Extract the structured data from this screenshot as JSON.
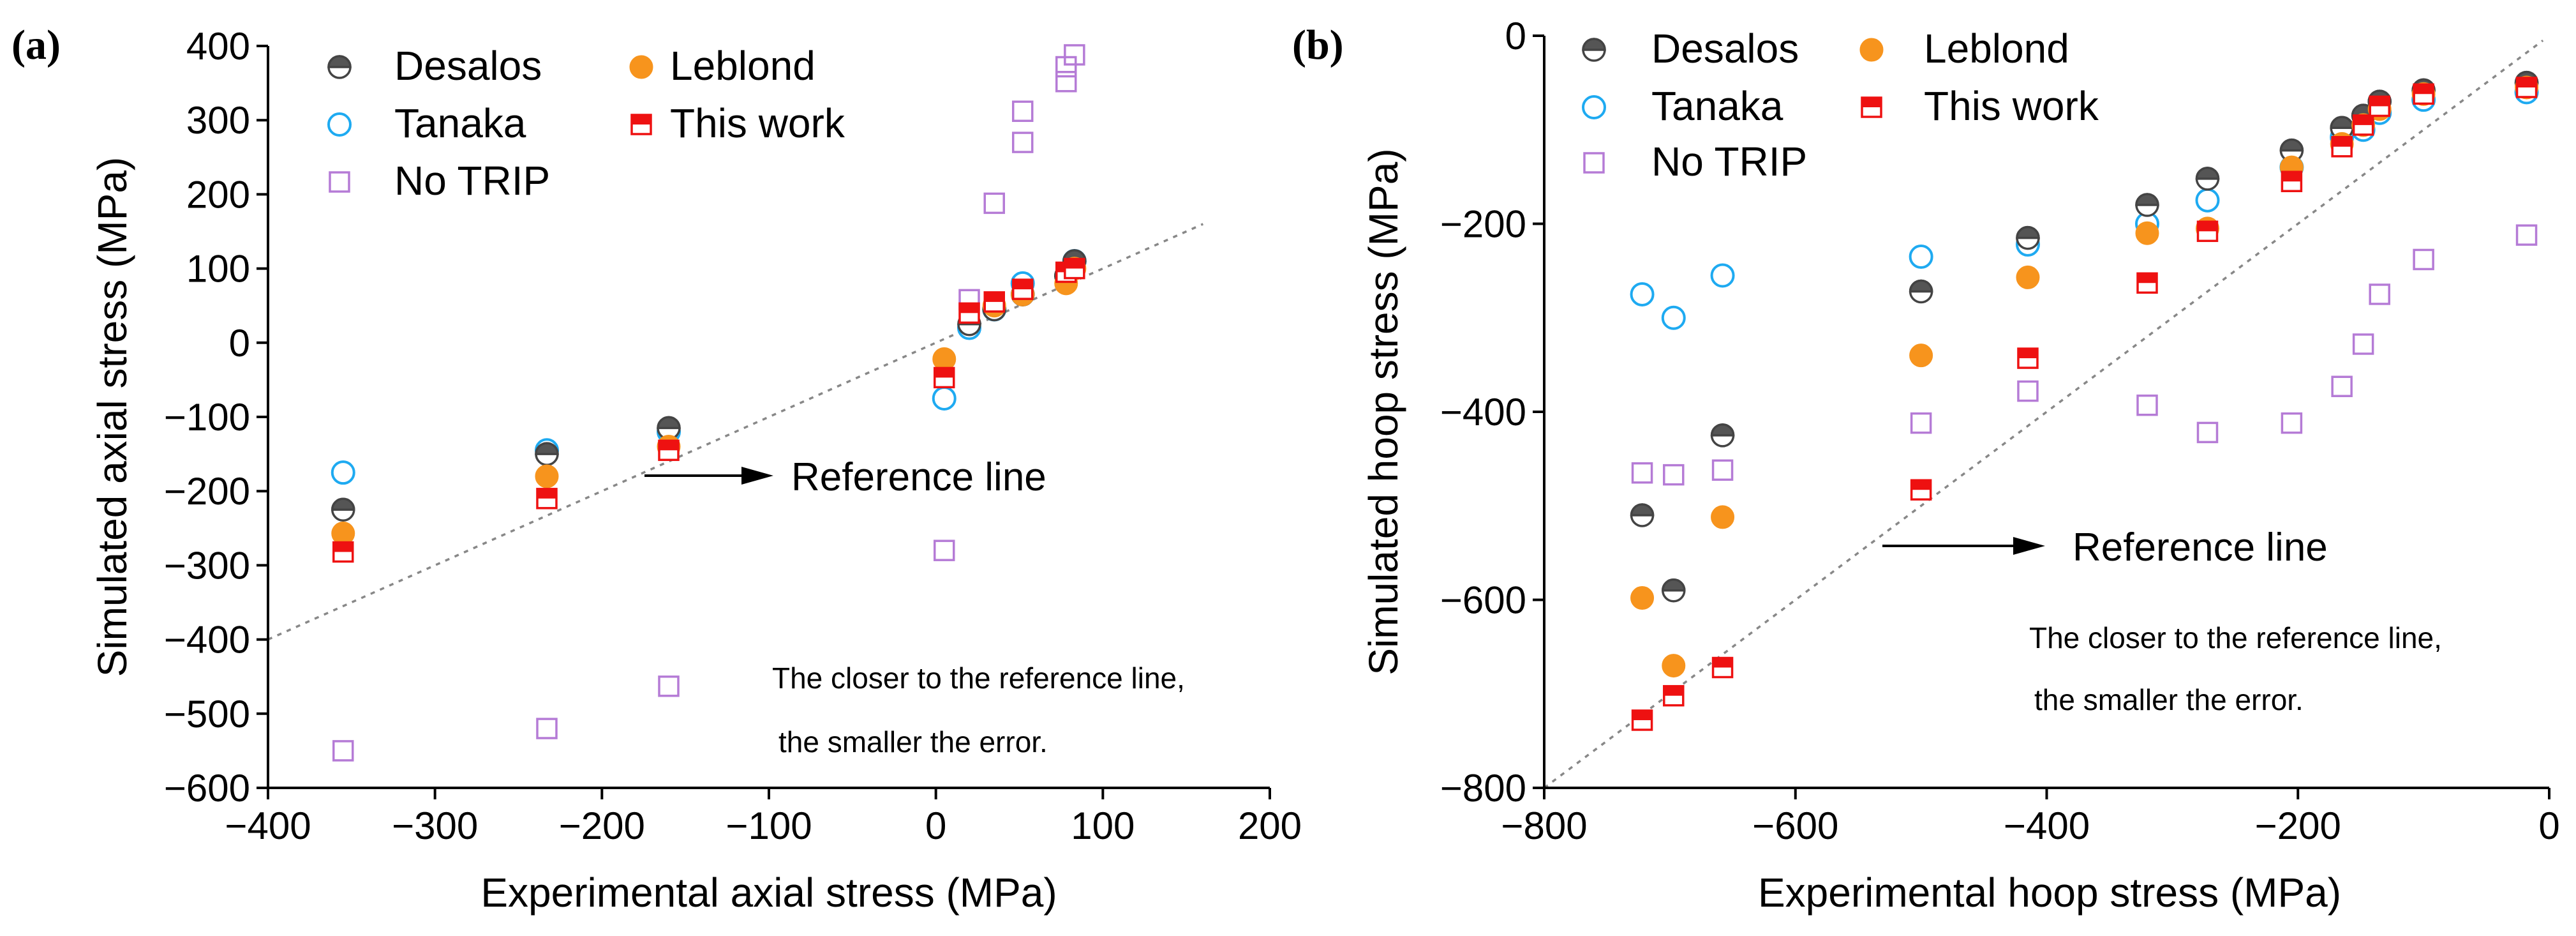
{
  "chart_data": [
    {
      "type": "scatter",
      "panel_label": "(a)",
      "xlabel": "Experimental axial stress (MPa)",
      "ylabel": "Simulated axial stress (MPa)",
      "xlim": [
        -400,
        200
      ],
      "ylim": [
        -600,
        400
      ],
      "xticks": [
        -400,
        -300,
        -200,
        -100,
        0,
        100,
        200
      ],
      "yticks": [
        -600,
        -500,
        -400,
        -300,
        -200,
        -100,
        0,
        100,
        200,
        300,
        400
      ],
      "xtick_labels": [
        "−400",
        "−300",
        "−200",
        "−100",
        "0",
        "100",
        "200"
      ],
      "ytick_labels": [
        "−600",
        "−500",
        "−400",
        "−300",
        "−200",
        "−100",
        "0",
        "100",
        "200",
        "300",
        "400"
      ],
      "reference_line": {
        "x": [
          -400,
          160
        ],
        "y": [
          -400,
          160
        ]
      },
      "annotations": {
        "reference_label": "Reference line",
        "note_line1": "The closer to the reference line,",
        "note_line2": "the smaller the error."
      },
      "legend_location": "top-left",
      "series": [
        {
          "name": "Desalos",
          "marker": "half-filled-circle",
          "color": "#555555",
          "x": [
            -355,
            -233,
            -160,
            20,
            35,
            52,
            78,
            83
          ],
          "y": [
            -225,
            -150,
            -115,
            25,
            45,
            65,
            90,
            110
          ]
        },
        {
          "name": "Leblond",
          "marker": "filled-circle",
          "color": "#f7941d",
          "x": [
            -355,
            -233,
            -160,
            5,
            35,
            52,
            78,
            83
          ],
          "y": [
            -257,
            -180,
            -140,
            -22,
            50,
            65,
            80,
            100
          ]
        },
        {
          "name": "Tanaka",
          "marker": "open-circle",
          "color": "#1eaaf1",
          "x": [
            -355,
            -233,
            -160,
            5,
            20,
            35,
            52,
            83
          ],
          "y": [
            -175,
            -145,
            -120,
            -75,
            20,
            45,
            80,
            110
          ]
        },
        {
          "name": "This work",
          "marker": "half-filled-square",
          "color": "#ee1111",
          "x": [
            -355,
            -233,
            -160,
            5,
            20,
            35,
            52,
            78,
            83
          ],
          "y": [
            -282,
            -210,
            -145,
            -47,
            40,
            55,
            72,
            95,
            100
          ]
        },
        {
          "name": "No TRIP",
          "marker": "open-square",
          "color": "#b57bd6",
          "x": [
            -355,
            -233,
            -160,
            5,
            20,
            35,
            52,
            52,
            78,
            78,
            83
          ],
          "y": [
            -550,
            -520,
            -463,
            -280,
            58,
            188,
            270,
            312,
            352,
            372,
            388
          ]
        }
      ]
    },
    {
      "type": "scatter",
      "panel_label": "(b)",
      "xlabel": "Experimental hoop stress (MPa)",
      "ylabel": "Simulated hoop stress (MPa)",
      "xlim": [
        -800,
        0
      ],
      "ylim": [
        -800,
        0
      ],
      "xticks": [
        -800,
        -600,
        -400,
        -200,
        0
      ],
      "yticks": [
        -800,
        -600,
        -400,
        -200,
        0
      ],
      "xtick_labels": [
        "−800",
        "−600",
        "−400",
        "−200",
        "0"
      ],
      "ytick_labels": [
        "−800",
        "−600",
        "−400",
        "−200",
        "0"
      ],
      "reference_line": {
        "x": [
          -800,
          -5
        ],
        "y": [
          -800,
          -5
        ]
      },
      "annotations": {
        "reference_label": "Reference line",
        "note_line1": "The closer to the reference line,",
        "note_line2": "the smaller the error."
      },
      "legend_location": "top-left",
      "series": [
        {
          "name": "Desalos",
          "marker": "half-filled-circle",
          "color": "#555555",
          "x": [
            -722,
            -697,
            -658,
            -500,
            -415,
            -320,
            -272,
            -205,
            -165,
            -148,
            -135,
            -100,
            -18
          ],
          "y": [
            -510,
            -590,
            -425,
            -272,
            -215,
            -180,
            -152,
            -122,
            -98,
            -85,
            -70,
            -58,
            -50
          ]
        },
        {
          "name": "Leblond",
          "marker": "filled-circle",
          "color": "#f7941d",
          "x": [
            -722,
            -697,
            -658,
            -500,
            -415,
            -320,
            -272,
            -205,
            -165,
            -148,
            -135,
            -100,
            -18
          ],
          "y": [
            -598,
            -670,
            -512,
            -340,
            -257,
            -210,
            -205,
            -140,
            -115,
            -95,
            -78,
            -62,
            -55
          ]
        },
        {
          "name": "Tanaka",
          "marker": "open-circle",
          "color": "#1eaaf1",
          "x": [
            -722,
            -697,
            -658,
            -500,
            -415,
            -320,
            -272,
            -205,
            -165,
            -148,
            -135,
            -100,
            -18
          ],
          "y": [
            -275,
            -300,
            -255,
            -235,
            -222,
            -200,
            -175,
            -140,
            -108,
            -100,
            -82,
            -68,
            -60
          ]
        },
        {
          "name": "This work",
          "marker": "half-filled-square",
          "color": "#ee1111",
          "x": [
            -722,
            -697,
            -658,
            -500,
            -415,
            -320,
            -272,
            -205,
            -165,
            -148,
            -135,
            -100,
            -18
          ],
          "y": [
            -728,
            -702,
            -672,
            -483,
            -343,
            -263,
            -208,
            -155,
            -118,
            -95,
            -75,
            -62,
            -55
          ]
        },
        {
          "name": "No TRIP",
          "marker": "open-square",
          "color": "#b57bd6",
          "x": [
            -722,
            -697,
            -658,
            -500,
            -415,
            -320,
            -272,
            -205,
            -165,
            -148,
            -135,
            -100,
            -18
          ],
          "y": [
            -465,
            -467,
            -462,
            -412,
            -378,
            -393,
            -422,
            -412,
            -373,
            -328,
            -275,
            -238,
            -212
          ]
        }
      ]
    }
  ]
}
